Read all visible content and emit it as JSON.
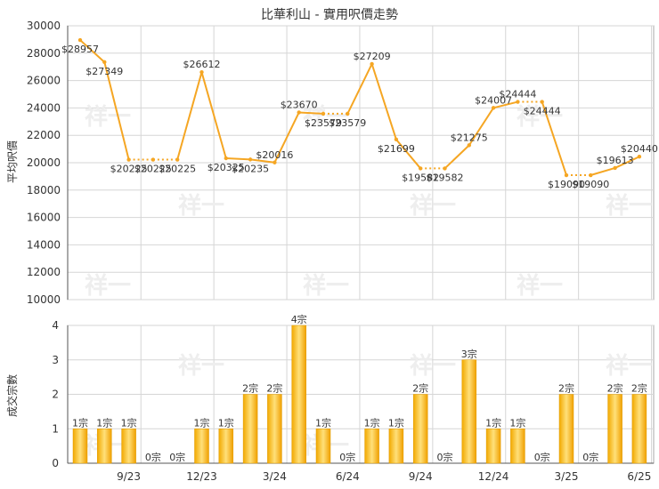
{
  "chart_data": [
    {
      "type": "line",
      "title": "比華利山 - 實用呎價走勢",
      "ylabel": "平均呎價",
      "ylim": [
        10000,
        30000
      ],
      "yticks": [
        10000,
        12000,
        14000,
        16000,
        18000,
        20000,
        22000,
        24000,
        26000,
        28000,
        30000
      ],
      "grid": true,
      "color": "#f5a623",
      "values": [
        28957,
        27349,
        20225,
        20225,
        20225,
        26612,
        20325,
        20235,
        20016,
        23670,
        23579,
        23579,
        27209,
        21699,
        19582,
        19582,
        21275,
        24007,
        24444,
        24444,
        19090,
        19090,
        19613,
        20440
      ],
      "labels": [
        "$28957",
        "$27349",
        "$20225",
        "$20225",
        "$20225",
        "$26612",
        "$20325",
        "$20235",
        "$20016",
        "$23670",
        "$23579",
        "$23579",
        "$27209",
        "$21699",
        "$19582",
        "$19582",
        "$21275",
        "$24007",
        "$24444",
        "$24444",
        "$19090",
        "$19090",
        "$19613",
        "$20440"
      ]
    },
    {
      "type": "bar",
      "ylabel": "成交宗數",
      "ylim": [
        0,
        4
      ],
      "yticks": [
        0,
        1,
        2,
        3,
        4
      ],
      "grid": true,
      "values": [
        1,
        1,
        1,
        0,
        0,
        1,
        1,
        2,
        2,
        4,
        1,
        0,
        1,
        1,
        2,
        0,
        3,
        1,
        1,
        0,
        2,
        0,
        2,
        2
      ],
      "labels": [
        "1宗",
        "1宗",
        "1宗",
        "0宗",
        "0宗",
        "1宗",
        "1宗",
        "2宗",
        "2宗",
        "4宗",
        "1宗",
        "0宗",
        "1宗",
        "1宗",
        "2宗",
        "0宗",
        "3宗",
        "1宗",
        "1宗",
        "0宗",
        "2宗",
        "0宗",
        "2宗",
        "2宗"
      ],
      "xtick_labels": [
        "9/23",
        "12/23",
        "3/24",
        "6/24",
        "9/24",
        "12/24",
        "3/25",
        "6/25"
      ],
      "xtick_index": [
        2,
        5,
        8,
        11,
        14,
        17,
        20,
        23
      ]
    }
  ],
  "watermark": "祥一"
}
